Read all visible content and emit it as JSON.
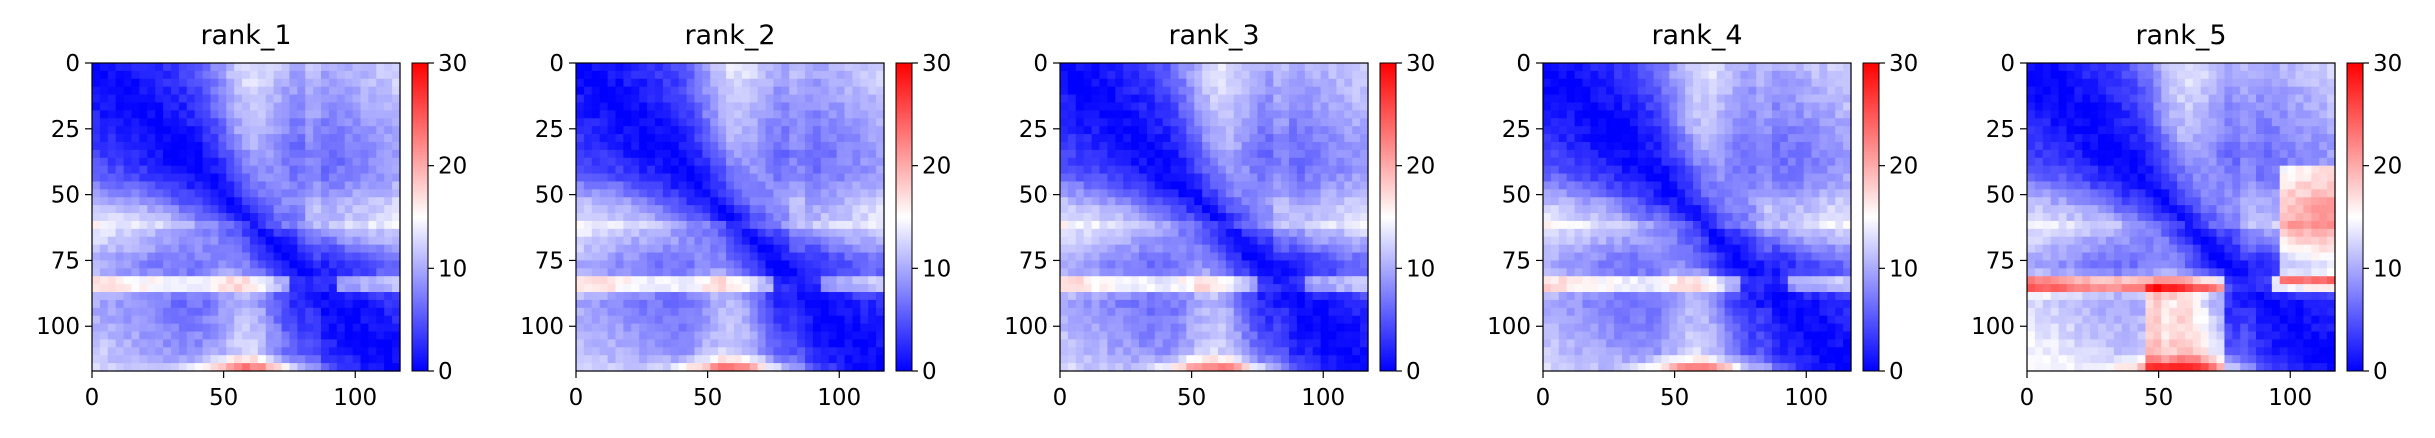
{
  "chart_data": [
    {
      "type": "heatmap",
      "title": "rank_1",
      "x_ticks": [
        0,
        50,
        100
      ],
      "y_ticks": [
        0,
        25,
        50,
        75,
        100
      ],
      "xlim": [
        0,
        117
      ],
      "ylim": [
        117,
        0
      ],
      "colorbar": {
        "ticks": [
          0,
          10,
          20,
          30
        ],
        "range": [
          0,
          30
        ],
        "colormap": "bwr"
      },
      "values_description": "distance-like matrix, blue near diagonal, white bands near 60, red stripes at row 85 and bottom"
    },
    {
      "type": "heatmap",
      "title": "rank_2",
      "x_ticks": [
        0,
        50,
        100
      ],
      "y_ticks": [
        0,
        25,
        50,
        75,
        100
      ],
      "xlim": [
        0,
        117
      ],
      "ylim": [
        117,
        0
      ],
      "colorbar": {
        "ticks": [
          0,
          10,
          20,
          30
        ],
        "range": [
          0,
          30
        ],
        "colormap": "bwr"
      }
    },
    {
      "type": "heatmap",
      "title": "rank_3",
      "x_ticks": [
        0,
        50,
        100
      ],
      "y_ticks": [
        0,
        25,
        50,
        75,
        100
      ],
      "xlim": [
        0,
        117
      ],
      "ylim": [
        117,
        0
      ],
      "colorbar": {
        "ticks": [
          0,
          10,
          20,
          30
        ],
        "range": [
          0,
          30
        ],
        "colormap": "bwr"
      }
    },
    {
      "type": "heatmap",
      "title": "rank_4",
      "x_ticks": [
        0,
        50,
        100
      ],
      "y_ticks": [
        0,
        25,
        50,
        75,
        100
      ],
      "xlim": [
        0,
        117
      ],
      "ylim": [
        117,
        0
      ],
      "colorbar": {
        "ticks": [
          0,
          10,
          20,
          30
        ],
        "range": [
          0,
          30
        ],
        "colormap": "bwr"
      }
    },
    {
      "type": "heatmap",
      "title": "rank_5",
      "x_ticks": [
        0,
        50,
        100
      ],
      "y_ticks": [
        0,
        25,
        50,
        75,
        100
      ],
      "xlim": [
        0,
        117
      ],
      "ylim": [
        117,
        0
      ],
      "colorbar": {
        "ticks": [
          0,
          10,
          20,
          30
        ],
        "range": [
          0,
          30
        ],
        "colormap": "bwr"
      }
    }
  ],
  "colors": {
    "low": "#0000ff",
    "mid": "#ffffff",
    "high": "#ff0000"
  }
}
